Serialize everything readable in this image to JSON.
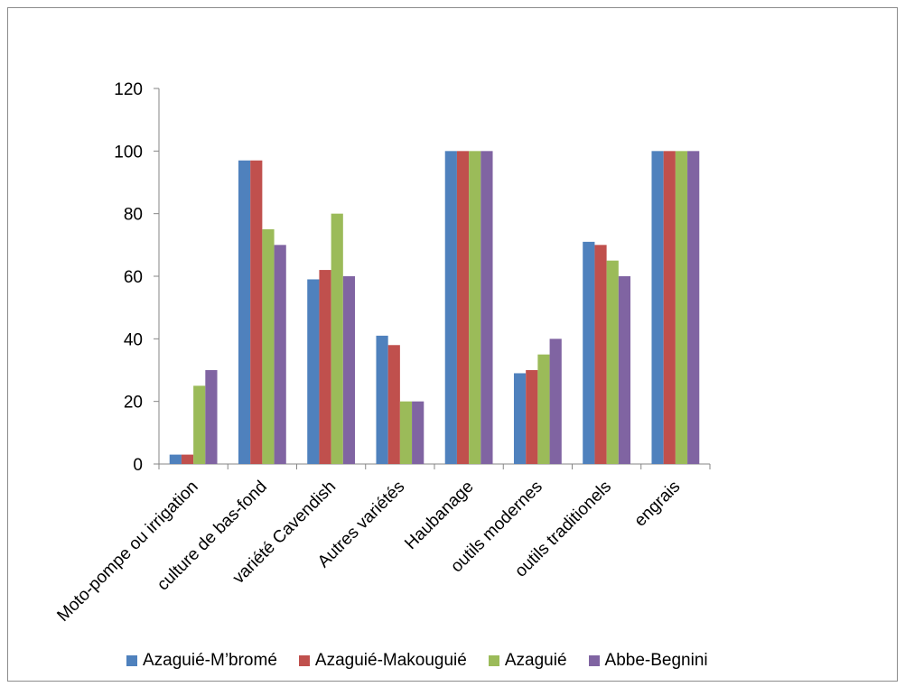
{
  "chart_data": {
    "type": "bar",
    "categories": [
      "Moto-pompe ou irrigation",
      "culture de bas-fond",
      "variété Cavendish",
      "Autres variétés",
      "Haubanage",
      "outils modernes",
      "outils traditionels",
      "engrais"
    ],
    "series": [
      {
        "name": "Azaguié-M’bromé",
        "color": "#4F81BD",
        "values": [
          3,
          97,
          59,
          41,
          100,
          29,
          71,
          100
        ]
      },
      {
        "name": "Azaguié-Makouguié",
        "color": "#C0504D",
        "values": [
          3,
          97,
          62,
          38,
          100,
          30,
          70,
          100
        ]
      },
      {
        "name": "Azaguié",
        "color": "#9BBB59",
        "values": [
          25,
          75,
          80,
          20,
          100,
          35,
          65,
          100
        ]
      },
      {
        "name": "Abbe-Begnini",
        "color": "#8064A2",
        "values": [
          30,
          70,
          60,
          20,
          100,
          40,
          60,
          100
        ]
      }
    ],
    "ylim": [
      0,
      120
    ],
    "yticks": [
      0,
      20,
      40,
      60,
      80,
      100,
      120
    ],
    "title": "",
    "xlabel": "",
    "ylabel": "",
    "grid": false,
    "legend_position": "bottom"
  }
}
